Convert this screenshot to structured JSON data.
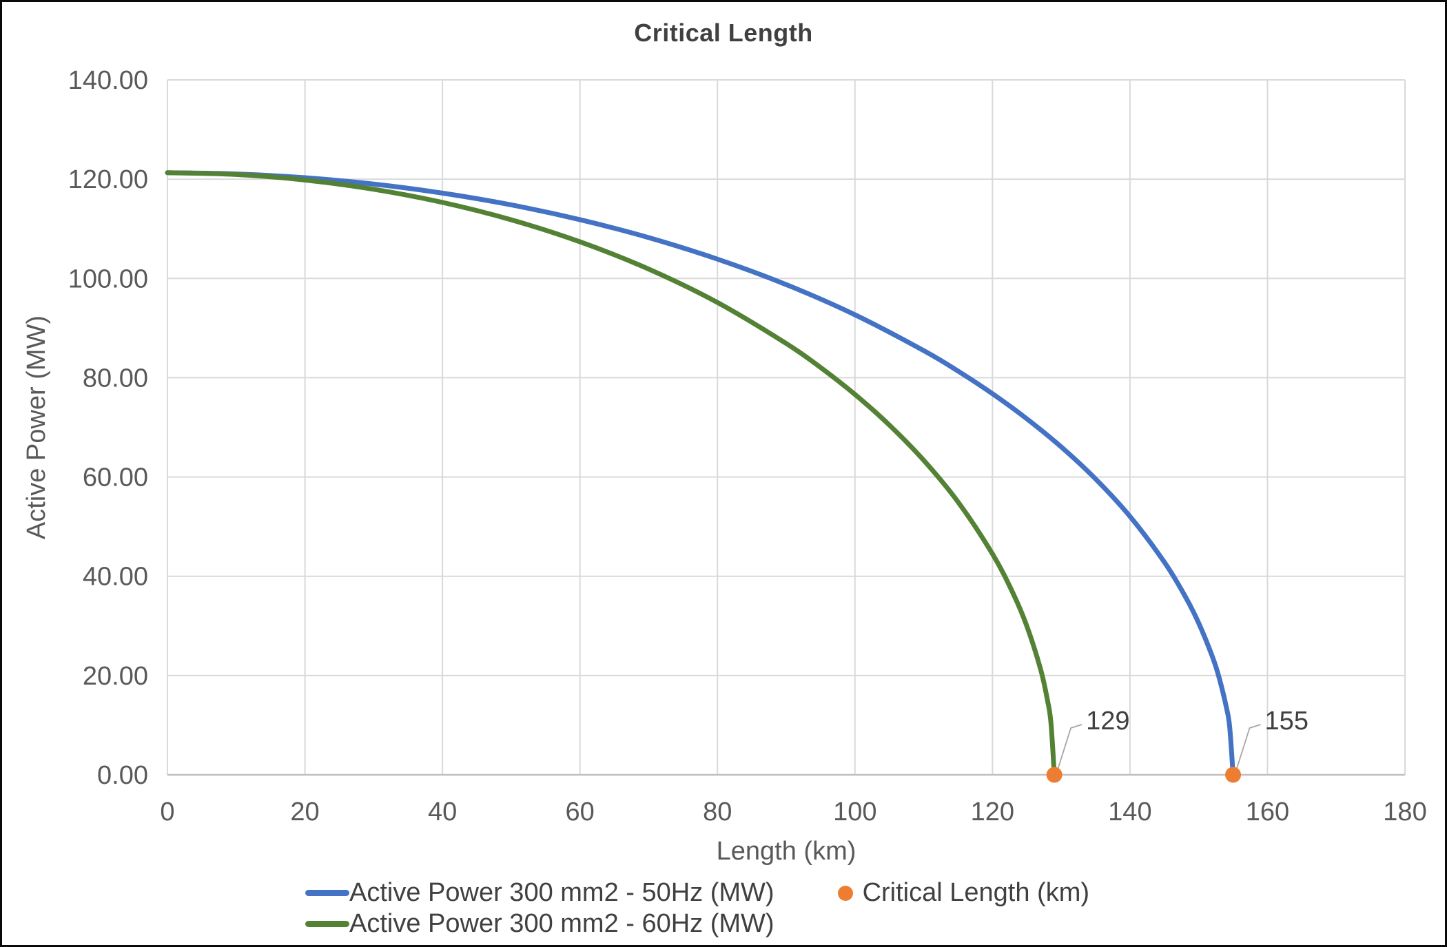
{
  "chart_data": {
    "type": "line",
    "title": "Critical Length",
    "xlabel": "Length (km)",
    "ylabel": "Active Power (MW)",
    "xlim": [
      0,
      180
    ],
    "ylim": [
      0,
      140
    ],
    "grid": true,
    "legend_position": "bottom",
    "x_ticks": [
      {
        "v": 0,
        "label": "0"
      },
      {
        "v": 20,
        "label": "20"
      },
      {
        "v": 40,
        "label": "40"
      },
      {
        "v": 60,
        "label": "60"
      },
      {
        "v": 80,
        "label": "80"
      },
      {
        "v": 100,
        "label": "100"
      },
      {
        "v": 120,
        "label": "120"
      },
      {
        "v": 140,
        "label": "140"
      },
      {
        "v": 160,
        "label": "160"
      },
      {
        "v": 180,
        "label": "180"
      }
    ],
    "y_ticks": [
      {
        "v": 0,
        "label": "0.00"
      },
      {
        "v": 20,
        "label": "20.00"
      },
      {
        "v": 40,
        "label": "40.00"
      },
      {
        "v": 60,
        "label": "60.00"
      },
      {
        "v": 80,
        "label": "80.00"
      },
      {
        "v": 100,
        "label": "100.00"
      },
      {
        "v": 120,
        "label": "120.00"
      },
      {
        "v": 140,
        "label": "140.00"
      }
    ],
    "series": [
      {
        "name": "Active Power 300 mm2 - 50Hz (MW)",
        "color": "#4472C4",
        "critical_length_km": 155,
        "points": [
          [
            0,
            121.3
          ],
          [
            10,
            121.05
          ],
          [
            20,
            120.29
          ],
          [
            30,
            119.01
          ],
          [
            40,
            117.19
          ],
          [
            50,
            114.82
          ],
          [
            60,
            111.84
          ],
          [
            70,
            108.23
          ],
          [
            80,
            103.89
          ],
          [
            90,
            98.76
          ],
          [
            100,
            92.68
          ],
          [
            110,
            85.46
          ],
          [
            115,
            81.33
          ],
          [
            120,
            76.78
          ],
          [
            125,
            71.72
          ],
          [
            130,
            66.06
          ],
          [
            135,
            59.6
          ],
          [
            140,
            52.06
          ],
          [
            145,
            42.86
          ],
          [
            148,
            36.04
          ],
          [
            150,
            30.56
          ],
          [
            152,
            23.76
          ],
          [
            153,
            19.42
          ],
          [
            154,
            13.73
          ],
          [
            154.5,
            9.7
          ],
          [
            155,
            0
          ]
        ]
      },
      {
        "name": "Active Power 300 mm2 - 60Hz (MW)",
        "color": "#548235",
        "critical_length_km": 129,
        "points": [
          [
            0,
            121.3
          ],
          [
            10,
            120.94
          ],
          [
            20,
            119.83
          ],
          [
            30,
            117.97
          ],
          [
            40,
            115.32
          ],
          [
            50,
            111.82
          ],
          [
            60,
            107.38
          ],
          [
            70,
            101.89
          ],
          [
            80,
            95.16
          ],
          [
            90,
            86.9
          ],
          [
            95,
            82.06
          ],
          [
            100,
            76.63
          ],
          [
            105,
            70.47
          ],
          [
            110,
            63.36
          ],
          [
            115,
            54.96
          ],
          [
            120,
            44.51
          ],
          [
            123,
            36.56
          ],
          [
            125,
            29.96
          ],
          [
            127,
            21.27
          ],
          [
            128,
            15.03
          ],
          [
            128.5,
            10.58
          ],
          [
            129,
            0
          ]
        ]
      }
    ],
    "markers": {
      "name": "Critical Length (km)",
      "color": "#ED7D31",
      "points": [
        {
          "x": 129,
          "y": 0,
          "label": "129"
        },
        {
          "x": 155,
          "y": 0,
          "label": "155"
        }
      ]
    }
  },
  "legend": {
    "rows": [
      [
        {
          "swatch": "line",
          "color": "#4472C4",
          "label": "Active Power 300 mm2 - 50Hz (MW)"
        },
        {
          "swatch": "dot",
          "color": "#ED7D31",
          "label": "Critical Length (km)"
        }
      ],
      [
        {
          "swatch": "line",
          "color": "#548235",
          "label": "Active Power 300 mm2 - 60Hz (MW)"
        }
      ]
    ]
  },
  "colors": {
    "series_50hz": "#4472C4",
    "series_60hz": "#548235",
    "marker": "#ED7D31",
    "gridline": "#D9D9D9",
    "axis_line": "#BFBFBF",
    "tick_text": "#595959",
    "title_text": "#404040",
    "data_label_text": "#404040",
    "leader_line": "#A6A6A6",
    "background": "#FFFFFF",
    "border": "#0A0A0A"
  }
}
